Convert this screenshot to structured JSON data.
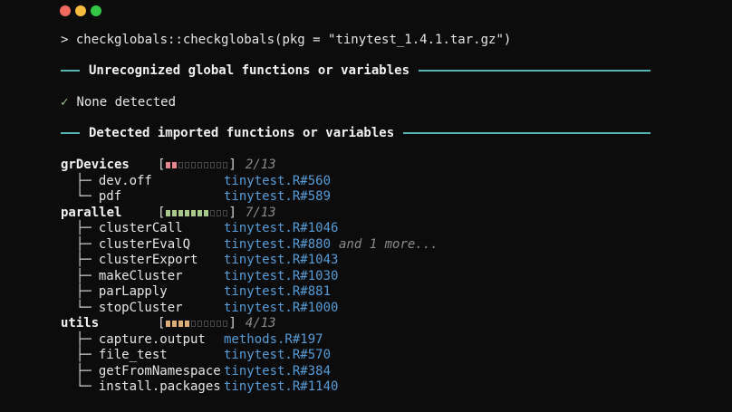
{
  "window": {
    "controls": [
      {
        "name": "close",
        "color": "#f16a5d"
      },
      {
        "name": "minimize",
        "color": "#f6bc3d"
      },
      {
        "name": "maximize",
        "color": "#33c748"
      }
    ]
  },
  "terminal": {
    "prompt": ">",
    "command": "checkglobals::checkglobals(pkg = \"tinytest_1.4.1.tar.gz\")"
  },
  "sections": {
    "unrecognized": {
      "title": "Unrecognized global functions or variables",
      "check_icon": "✓",
      "result": "None detected"
    },
    "detected": {
      "title": "Detected imported functions or variables"
    }
  },
  "tree_glyphs": {
    "branch": "├─",
    "last": "└─"
  },
  "colors": {
    "bg": "#0c0c0c",
    "teal": "#55b5b2",
    "blue": "#569cd6",
    "gray": "#8a8a8a",
    "check-green": "#a6cc8d",
    "empty-sq": "#474747"
  },
  "packages": [
    {
      "name": "grDevices",
      "filled": 2,
      "total_squares": 10,
      "count": "2/13",
      "fill_color": "#e5878d",
      "imports": [
        {
          "name": "dev.off",
          "ref": "tinytest.R#560"
        },
        {
          "name": "pdf",
          "ref": "tinytest.R#589"
        }
      ]
    },
    {
      "name": "parallel",
      "filled": 7,
      "total_squares": 10,
      "count": "7/13",
      "fill_color": "#a9c98b",
      "imports": [
        {
          "name": "clusterCall",
          "ref": "tinytest.R#1046"
        },
        {
          "name": "clusterEvalQ",
          "ref": "tinytest.R#880",
          "extra": "and 1 more..."
        },
        {
          "name": "clusterExport",
          "ref": "tinytest.R#1043"
        },
        {
          "name": "makeCluster",
          "ref": "tinytest.R#1030"
        },
        {
          "name": "parLapply",
          "ref": "tinytest.R#881"
        },
        {
          "name": "stopCluster",
          "ref": "tinytest.R#1000"
        }
      ]
    },
    {
      "name": "utils",
      "filled": 4,
      "total_squares": 10,
      "count": "4/13",
      "fill_color": "#deae79",
      "imports": [
        {
          "name": "capture.output",
          "ref": "methods.R#197"
        },
        {
          "name": "file_test",
          "ref": "tinytest.R#570"
        },
        {
          "name": "getFromNamespace",
          "ref": "tinytest.R#384"
        },
        {
          "name": "install.packages",
          "ref": "tinytest.R#1140"
        }
      ]
    }
  ]
}
